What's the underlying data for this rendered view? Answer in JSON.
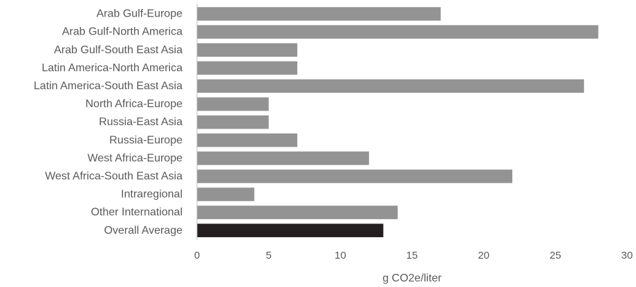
{
  "chart_data": {
    "type": "bar",
    "orientation": "horizontal",
    "categories": [
      "Arab Gulf-Europe",
      "Arab Gulf-North America",
      "Arab Gulf-South East Asia",
      "Latin America-North America",
      "Latin America-South East Asia",
      "North Africa-Europe",
      "Russia-East Asia",
      "Russia-Europe",
      "West Africa-Europe",
      "West Africa-South East Asia",
      "Intraregional",
      "Other International",
      "Overall Average"
    ],
    "values": [
      17,
      28,
      7,
      7,
      27,
      5,
      5,
      7,
      12,
      22,
      4,
      14,
      13
    ],
    "xlabel": "g CO2e/liter",
    "ylabel": "",
    "xlim": [
      0,
      30
    ],
    "xticks": [
      "0",
      "5",
      "10",
      "15",
      "20",
      "25",
      "30"
    ],
    "grid": false,
    "legend": "none",
    "colors": {
      "bar": "#939393",
      "highlight_bar": "#231f20",
      "axis": "#bfbfbf",
      "text": "#595959"
    },
    "highlight_category": "Overall Average"
  }
}
